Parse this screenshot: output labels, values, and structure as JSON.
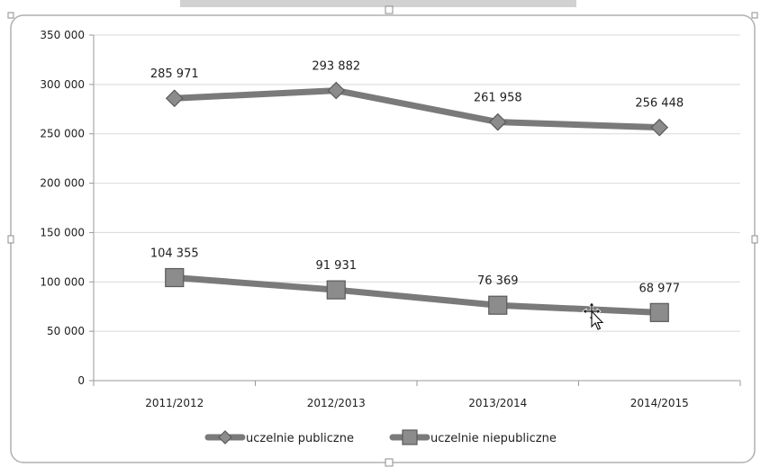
{
  "chart_data": {
    "type": "line",
    "categories": [
      "2011/2012",
      "2012/2013",
      "2013/2014",
      "2014/2015"
    ],
    "series": [
      {
        "name": "uczelnie publiczne",
        "marker": "diamond",
        "values": [
          285971,
          293882,
          261958,
          256448
        ],
        "labels": [
          "285 971",
          "293 882",
          "261 958",
          "256 448"
        ]
      },
      {
        "name": "uczelnie niepubliczne",
        "marker": "square",
        "values": [
          104355,
          91931,
          76369,
          68977
        ],
        "labels": [
          "104 355",
          "91 931",
          "76 369",
          "68 977"
        ]
      }
    ],
    "yticks": [
      "0",
      "50 000",
      "100 000",
      "150 000",
      "200 000",
      "250 000",
      "300 000",
      "350 000"
    ],
    "ylim": [
      0,
      350000
    ],
    "grid": true,
    "legend": "bottom",
    "colors": {
      "line": "#7a7a7a",
      "marker_fill": "#8c8c8c",
      "marker_edge": "#5a5a5a",
      "grid": "#d9d9d9",
      "axis": "#9a9a9a",
      "frame": "#b0b0b0",
      "text": "#1e1e1e"
    }
  }
}
